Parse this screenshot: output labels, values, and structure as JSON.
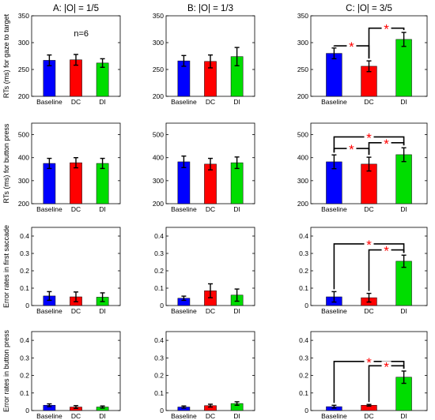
{
  "chart_data": {
    "type": "bar",
    "categories": [
      "Baseline",
      "DC",
      "DI"
    ],
    "colors": [
      "#0000ff",
      "#ff0000",
      "#00dd00"
    ],
    "star_color": "#ff0000",
    "n_label": "n=6",
    "columns": [
      {
        "title": "A: |O| = 1/5"
      },
      {
        "title": "B: |O| = 1/3"
      },
      {
        "title": "C: |O| = 3/5"
      }
    ],
    "rows": [
      {
        "ylabel": "RTs (ms) for gaze to target",
        "ylim": [
          200,
          350
        ],
        "yticks": [
          "200",
          "250",
          "300",
          "350"
        ],
        "ytick_values": [
          200,
          250,
          300,
          350
        ],
        "panels": [
          {
            "values": [
              267,
              268,
              262
            ],
            "errors": [
              10,
              10,
              8
            ],
            "sig": []
          },
          {
            "values": [
              266,
              265,
              274
            ],
            "errors": [
              10,
              12,
              17
            ],
            "sig": []
          },
          {
            "values": [
              280,
              256,
              306
            ],
            "errors": [
              10,
              10,
              13
            ],
            "sig": [
              {
                "from": 0,
                "to": 1,
                "y": 294,
                "label": "*"
              },
              {
                "from": 1,
                "to": 2,
                "y": 327,
                "label": "*"
              }
            ]
          }
        ]
      },
      {
        "ylabel": "RTs (ms) for button press",
        "ylim": [
          200,
          550
        ],
        "yticks": [
          "200",
          "300",
          "400",
          "500"
        ],
        "ytick_values": [
          200,
          300,
          400,
          500
        ],
        "panels": [
          {
            "values": [
              375,
              378,
              375
            ],
            "errors": [
              22,
              22,
              22
            ],
            "sig": []
          },
          {
            "values": [
              382,
              372,
              378
            ],
            "errors": [
              25,
              25,
              25
            ],
            "sig": []
          },
          {
            "values": [
              382,
              372,
              413
            ],
            "errors": [
              30,
              30,
              30
            ],
            "sig": [
              {
                "from": 0,
                "to": 1,
                "y": 440,
                "label": "*"
              },
              {
                "from": 0,
                "to": 2,
                "y": 490,
                "label": "*"
              },
              {
                "from": 1,
                "to": 2,
                "y": 465,
                "label": "*"
              }
            ]
          }
        ]
      },
      {
        "ylabel": "Error rates in first saccade",
        "ylim": [
          0,
          0.45
        ],
        "yticks": [
          "0",
          "0.1",
          "0.2",
          "0.3",
          "0.4"
        ],
        "ytick_values": [
          0,
          0.1,
          0.2,
          0.3,
          0.4
        ],
        "panels": [
          {
            "values": [
              0.055,
              0.05,
              0.048
            ],
            "errors": [
              0.025,
              0.028,
              0.025
            ],
            "sig": []
          },
          {
            "values": [
              0.042,
              0.085,
              0.06
            ],
            "errors": [
              0.012,
              0.04,
              0.035
            ],
            "sig": []
          },
          {
            "values": [
              0.05,
              0.045,
              0.255
            ],
            "errors": [
              0.03,
              0.025,
              0.035
            ],
            "sig": [
              {
                "from": 0,
                "to": 2,
                "y": 0.355,
                "label": "*"
              },
              {
                "from": 1,
                "to": 2,
                "y": 0.32,
                "label": "*"
              }
            ]
          }
        ]
      },
      {
        "ylabel": "Error rates in button press",
        "ylim": [
          0,
          0.45
        ],
        "yticks": [
          "0",
          "0.1",
          "0.2",
          "0.3",
          "0.4"
        ],
        "ytick_values": [
          0,
          0.1,
          0.2,
          0.3,
          0.4
        ],
        "panels": [
          {
            "values": [
              0.03,
              0.02,
              0.02
            ],
            "errors": [
              0.008,
              0.008,
              0.006
            ],
            "sig": []
          },
          {
            "values": [
              0.02,
              0.028,
              0.04
            ],
            "errors": [
              0.006,
              0.008,
              0.01
            ],
            "sig": []
          },
          {
            "values": [
              0.022,
              0.03,
              0.19
            ],
            "errors": [
              0.008,
              0.005,
              0.035
            ],
            "sig": [
              {
                "from": 0,
                "to": 2,
                "y": 0.28,
                "label": "*"
              },
              {
                "from": 1,
                "to": 2,
                "y": 0.255,
                "label": "*"
              }
            ]
          }
        ]
      }
    ]
  }
}
